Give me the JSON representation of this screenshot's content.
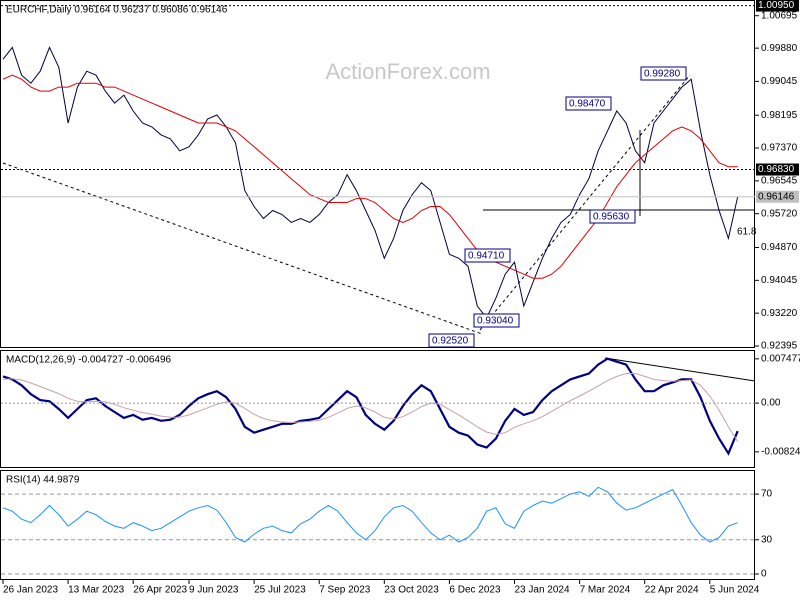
{
  "chart_data": [
    {
      "type": "line",
      "title": "EURCHF,Daily  0.96164 0.96237 0.96086 0.96146",
      "watermark": "ActionForex.com",
      "ylim": [
        0.9237,
        1.0109
      ],
      "yticks": [
        {
          "value": 1.00695,
          "label": "1.00695"
        },
        {
          "value": 0.9988,
          "label": "0.99880"
        },
        {
          "value": 0.99045,
          "label": "0.99045"
        },
        {
          "value": 0.98195,
          "label": "0.98195"
        },
        {
          "value": 0.9737,
          "label": "0.97370"
        },
        {
          "value": 0.96545,
          "label": "0.96545"
        },
        {
          "value": 0.9572,
          "label": "0.95720"
        },
        {
          "value": 0.9487,
          "label": "0.94870"
        },
        {
          "value": 0.94045,
          "label": "0.94045"
        },
        {
          "value": 0.9322,
          "label": "0.93220"
        },
        {
          "value": 0.92395,
          "label": "0.92395"
        }
      ],
      "price_lines": [
        {
          "value": 1.0095,
          "label": "1.00950",
          "color": "#000000"
        },
        {
          "value": 0.9683,
          "label": "0.96830",
          "color": "#000000"
        },
        {
          "value": 0.96146,
          "label": "0.96146",
          "color": "#c0c0c0"
        }
      ],
      "annotations": [
        "0.99280",
        "0.98470",
        "0.95630",
        "0.94710",
        "0.93040",
        "0.92520",
        "61.8"
      ],
      "series": [
        {
          "color": "#000040",
          "values": [
            0.996,
            0.999,
            0.992,
            0.99,
            0.993,
            0.999,
            0.994,
            0.98,
            0.989,
            0.993,
            0.992,
            0.988,
            0.985,
            0.987,
            0.983,
            0.98,
            0.979,
            0.977,
            0.976,
            0.973,
            0.974,
            0.977,
            0.981,
            0.982,
            0.979,
            0.975,
            0.963,
            0.959,
            0.956,
            0.958,
            0.957,
            0.955,
            0.956,
            0.955,
            0.957,
            0.96,
            0.962,
            0.967,
            0.963,
            0.958,
            0.953,
            0.946,
            0.951,
            0.958,
            0.962,
            0.965,
            0.963,
            0.955,
            0.947,
            0.946,
            0.944,
            0.934,
            0.931,
            0.936,
            0.942,
            0.945,
            0.934,
            0.94,
            0.946,
            0.951,
            0.955,
            0.957,
            0.962,
            0.966,
            0.973,
            0.978,
            0.983,
            0.98,
            0.973,
            0.97,
            0.98,
            0.983,
            0.986,
            0.989,
            0.991,
            0.978,
            0.967,
            0.958,
            0.951,
            0.96146
          ]
        },
        {
          "color": "#e00000",
          "values": [
            0.991,
            0.992,
            0.991,
            0.989,
            0.988,
            0.988,
            0.989,
            0.989,
            0.99,
            0.99,
            0.99,
            0.989,
            0.989,
            0.988,
            0.987,
            0.986,
            0.985,
            0.984,
            0.983,
            0.982,
            0.981,
            0.98,
            0.98,
            0.98,
            0.979,
            0.978,
            0.976,
            0.974,
            0.972,
            0.97,
            0.968,
            0.966,
            0.964,
            0.962,
            0.961,
            0.96,
            0.96,
            0.96,
            0.961,
            0.961,
            0.96,
            0.958,
            0.956,
            0.955,
            0.956,
            0.958,
            0.959,
            0.959,
            0.957,
            0.954,
            0.951,
            0.948,
            0.946,
            0.945,
            0.944,
            0.943,
            0.942,
            0.941,
            0.941,
            0.942,
            0.944,
            0.947,
            0.95,
            0.953,
            0.956,
            0.96,
            0.964,
            0.967,
            0.97,
            0.972,
            0.974,
            0.976,
            0.978,
            0.979,
            0.978,
            0.976,
            0.973,
            0.97,
            0.969,
            0.969
          ]
        }
      ]
    },
    {
      "type": "line",
      "title": "MACD(12,26,9) -0.004727 -0.006496",
      "ylim": [
        -0.0108,
        0.0088
      ],
      "yticks": [
        0.007477,
        {
          "value": 0,
          "label": "0.00"
        },
        -0.00824
      ],
      "series": [
        {
          "color": "#000080",
          "values": [
            0.0045,
            0.004,
            0.003,
            0.0015,
            0.0005,
            0.0003,
            -0.001,
            -0.0025,
            -0.001,
            0.0005,
            0.0008,
            -0.0005,
            -0.0015,
            -0.0025,
            -0.002,
            -0.0028,
            -0.0025,
            -0.003,
            -0.0028,
            -0.002,
            -0.0005,
            0.0008,
            0.0015,
            0.002,
            0.001,
            -0.001,
            -0.004,
            -0.005,
            -0.0045,
            -0.004,
            -0.0035,
            -0.0035,
            -0.003,
            -0.0028,
            -0.0025,
            -0.001,
            0.0005,
            0.002,
            0.001,
            -0.002,
            -0.0035,
            -0.0045,
            -0.003,
            -0.0005,
            0.0015,
            0.003,
            0.002,
            -0.001,
            -0.004,
            -0.005,
            -0.0055,
            -0.007,
            -0.0075,
            -0.006,
            -0.003,
            -0.001,
            -0.002,
            -0.0015,
            0.0005,
            0.002,
            0.003,
            0.004,
            0.0045,
            0.005,
            0.0065,
            0.0075,
            0.007,
            0.0065,
            0.004,
            0.002,
            0.002,
            0.003,
            0.0035,
            0.004,
            0.004,
            0.001,
            -0.003,
            -0.006,
            -0.0085,
            -0.004727
          ]
        },
        {
          "color": "#c8a0a8",
          "values": [
            0.004,
            0.0041,
            0.0039,
            0.0034,
            0.0028,
            0.0022,
            0.0016,
            0.0008,
            0.0003,
            0.0002,
            0.0003,
            0.0002,
            -0.0002,
            -0.0008,
            -0.0012,
            -0.0016,
            -0.0019,
            -0.0022,
            -0.0024,
            -0.0024,
            -0.002,
            -0.0014,
            -0.0008,
            -0.0002,
            0.0002,
            0.0,
            -0.0009,
            -0.0019,
            -0.0026,
            -0.003,
            -0.0032,
            -0.0033,
            -0.0032,
            -0.0031,
            -0.0029,
            -0.0024,
            -0.0017,
            -0.0009,
            -0.0005,
            -0.0008,
            -0.0015,
            -0.0024,
            -0.0027,
            -0.0023,
            -0.0015,
            -0.0006,
            0.0,
            -0.0002,
            -0.0011,
            -0.002,
            -0.003,
            -0.004,
            -0.0049,
            -0.0053,
            -0.005,
            -0.0041,
            -0.0035,
            -0.003,
            -0.0023,
            -0.0014,
            -0.0005,
            0.0004,
            0.0012,
            0.002,
            0.0029,
            0.0038,
            0.0045,
            0.005,
            0.005,
            0.0045,
            0.004,
            0.0038,
            0.0037,
            0.0038,
            0.0039,
            0.003,
            0.0012,
            -0.0012,
            -0.004,
            -0.006496
          ]
        }
      ]
    },
    {
      "type": "line",
      "title": "RSI(14) 44.9879",
      "ylim": [
        0,
        92
      ],
      "yticks": [
        70,
        30,
        0
      ],
      "grid": true,
      "categories": [
        "26 Jan 2023",
        null,
        null,
        null,
        null,
        null,
        null,
        "13 Mar 2023",
        null,
        null,
        null,
        null,
        null,
        null,
        "26 Apr 2023",
        null,
        null,
        null,
        null,
        null,
        "9 Jun 2023",
        null,
        null,
        null,
        null,
        null,
        null,
        "25 Jul 2023",
        null,
        null,
        null,
        null,
        null,
        null,
        "7 Sep 2023",
        null,
        null,
        null,
        null,
        null,
        null,
        "23 Oct 2023",
        null,
        null,
        null,
        null,
        null,
        null,
        "6 Dec 2023",
        null,
        null,
        null,
        null,
        null,
        null,
        "23 Jan 2024",
        null,
        null,
        null,
        null,
        null,
        null,
        "7 Mar 2024",
        null,
        null,
        null,
        null,
        null,
        null,
        "22 Apr 2024",
        null,
        null,
        null,
        null,
        null,
        null,
        "5 Jun 2024",
        null,
        null,
        null
      ],
      "series": [
        {
          "color": "#1e90ff",
          "values": [
            58,
            55,
            48,
            45,
            52,
            60,
            52,
            42,
            48,
            55,
            52,
            46,
            42,
            40,
            45,
            42,
            38,
            40,
            45,
            50,
            55,
            58,
            60,
            56,
            45,
            32,
            28,
            35,
            40,
            42,
            38,
            36,
            44,
            48,
            55,
            60,
            55,
            45,
            36,
            30,
            38,
            50,
            58,
            60,
            55,
            45,
            36,
            30,
            34,
            28,
            32,
            40,
            55,
            58,
            44,
            40,
            55,
            60,
            64,
            62,
            66,
            70,
            72,
            68,
            76,
            72,
            62,
            56,
            58,
            62,
            66,
            70,
            74,
            60,
            45,
            34,
            28,
            32,
            42,
            44.9879
          ]
        }
      ]
    }
  ]
}
